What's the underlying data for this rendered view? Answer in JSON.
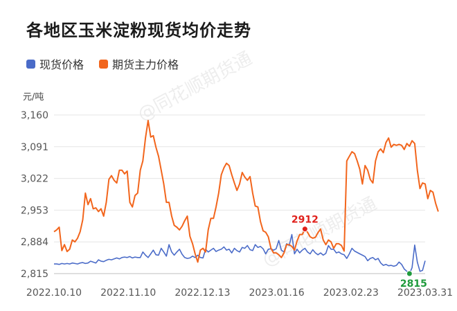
{
  "title": "各地区玉米淀粉现货均价走势",
  "legend": [
    {
      "label": "现货价格",
      "color": "#4a6bc8"
    },
    {
      "label": "期货主力价格",
      "color": "#f2651c"
    }
  ],
  "watermark": "@同花顺期货通",
  "chart_data": {
    "type": "line",
    "ylabel": "元/吨",
    "ylim": [
      2815,
      3160
    ],
    "y_ticks": [
      "3,160",
      "3,091",
      "3,022",
      "2,953",
      "2,884",
      "2,815"
    ],
    "y_tick_values": [
      3160,
      3091,
      3022,
      2953,
      2884,
      2815
    ],
    "x_tick_labels": [
      "2022.10.10",
      "2022.11.10",
      "2022.12.13",
      "2023.01.16",
      "2023.02.23",
      "2023.03.31"
    ],
    "grid": true,
    "legend_position": "top-left",
    "series": [
      {
        "name": "现货价格",
        "color": "#4a6bc8",
        "values": [
          2836,
          2836,
          2835,
          2837,
          2836,
          2837,
          2836,
          2838,
          2837,
          2836,
          2838,
          2839,
          2837,
          2838,
          2842,
          2840,
          2838,
          2845,
          2842,
          2841,
          2844,
          2846,
          2845,
          2847,
          2849,
          2847,
          2850,
          2851,
          2850,
          2852,
          2849,
          2851,
          2850,
          2850,
          2862,
          2855,
          2850,
          2858,
          2866,
          2856,
          2855,
          2870,
          2862,
          2853,
          2878,
          2862,
          2855,
          2862,
          2868,
          2857,
          2850,
          2848,
          2849,
          2853,
          2850,
          2855,
          2850,
          2849,
          2868,
          2862,
          2866,
          2870,
          2863,
          2866,
          2868,
          2873,
          2866,
          2868,
          2860,
          2870,
          2865,
          2862,
          2872,
          2870,
          2876,
          2867,
          2865,
          2878,
          2872,
          2874,
          2869,
          2858,
          2868,
          2869,
          2866,
          2869,
          2887,
          2866,
          2862,
          2880,
          2876,
          2900,
          2858,
          2868,
          2860,
          2866,
          2870,
          2862,
          2858,
          2867,
          2860,
          2856,
          2860,
          2855,
          2859,
          2876,
          2868,
          2868,
          2860,
          2862,
          2858,
          2856,
          2848,
          2858,
          2870,
          2864,
          2861,
          2858,
          2855,
          2852,
          2843,
          2848,
          2850,
          2845,
          2848,
          2838,
          2833,
          2835,
          2832,
          2833,
          2831,
          2833,
          2840,
          2835,
          2825,
          2820,
          2815,
          2828,
          2877,
          2840,
          2820,
          2822,
          2843
        ],
        "min_label": "2815",
        "min_index": 136
      },
      {
        "name": "期货主力价格",
        "color": "#f2651c",
        "values": [
          2906,
          2910,
          2916,
          2865,
          2878,
          2863,
          2868,
          2888,
          2884,
          2892,
          2906,
          2932,
          2990,
          2965,
          2978,
          2956,
          2958,
          2950,
          2956,
          2940,
          2970,
          3020,
          3028,
          3018,
          3012,
          3040,
          3040,
          3032,
          3038,
          2970,
          2960,
          2985,
          2990,
          3040,
          3060,
          3110,
          3148,
          3112,
          3115,
          3090,
          3070,
          3040,
          3010,
          2970,
          2970,
          2940,
          2920,
          2916,
          2910,
          2918,
          2930,
          2940,
          2896,
          2880,
          2858,
          2840,
          2866,
          2870,
          2862,
          2910,
          2935,
          2935,
          2960,
          2990,
          3030,
          3045,
          3055,
          3050,
          3030,
          3012,
          2996,
          3010,
          3035,
          3025,
          3018,
          3026,
          2990,
          2962,
          2960,
          2928,
          2908,
          2905,
          2895,
          2870,
          2860,
          2860,
          2856,
          2850,
          2860,
          2878,
          2878,
          2874,
          2866,
          2886,
          2900,
          2900,
          2912,
          2905,
          2895,
          2892,
          2894,
          2904,
          2912,
          2888,
          2878,
          2888,
          2884,
          2870,
          2880,
          2880,
          2876,
          2864,
          3060,
          3070,
          3080,
          3076,
          3060,
          3042,
          3010,
          3050,
          3040,
          3020,
          3012,
          3060,
          3080,
          3086,
          3078,
          3100,
          3110,
          3090,
          3096,
          3094,
          3096,
          3094,
          3085,
          3098,
          3092,
          3104,
          3098,
          3040,
          3000,
          3012,
          3010,
          2978,
          2996,
          2992,
          2968,
          2950
        ],
        "marker_label": "2912",
        "marker_index": 96
      }
    ]
  }
}
